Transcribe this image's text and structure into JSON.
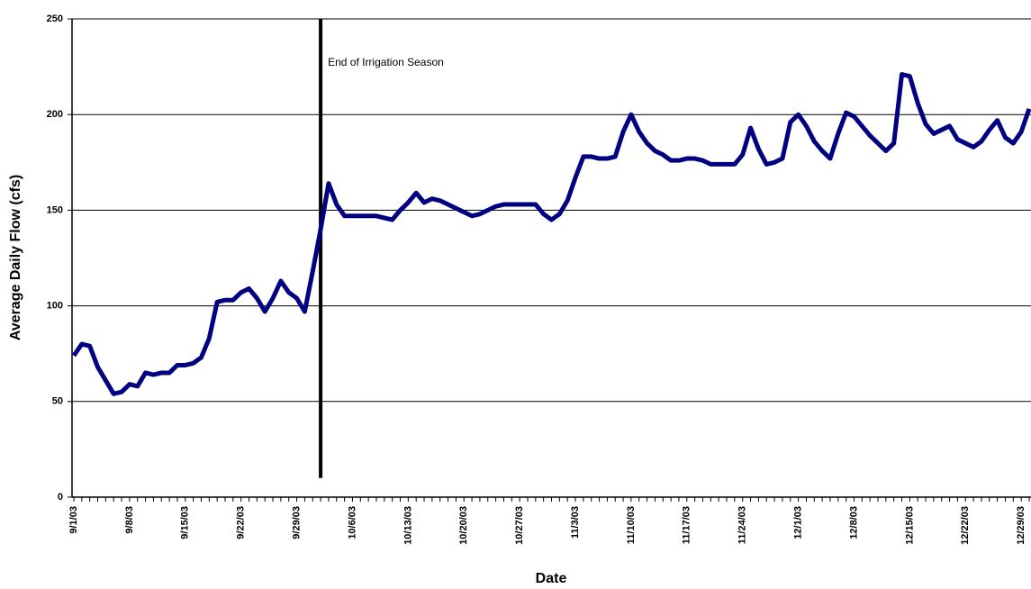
{
  "chart_data": {
    "type": "line",
    "ylabel": "Average Daily Flow (cfs)",
    "xlabel": "Date",
    "categories": [
      "9/1/03",
      null,
      null,
      null,
      null,
      null,
      null,
      "9/8/03",
      null,
      null,
      null,
      null,
      null,
      null,
      "9/15/03",
      null,
      null,
      null,
      null,
      null,
      null,
      "9/22/03",
      null,
      null,
      null,
      null,
      null,
      null,
      "9/29/03",
      null,
      null,
      null,
      null,
      null,
      null,
      "10/6/03",
      null,
      null,
      null,
      null,
      null,
      null,
      "10/13/03",
      null,
      null,
      null,
      null,
      null,
      null,
      "10/20/03",
      null,
      null,
      null,
      null,
      null,
      null,
      "10/27/03",
      null,
      null,
      null,
      null,
      null,
      null,
      "11/3/03",
      null,
      null,
      null,
      null,
      null,
      null,
      "11/10/03",
      null,
      null,
      null,
      null,
      null,
      null,
      "11/17/03",
      null,
      null,
      null,
      null,
      null,
      null,
      "11/24/03",
      null,
      null,
      null,
      null,
      null,
      null,
      "12/1/03",
      null,
      null,
      null,
      null,
      null,
      null,
      "12/8/03",
      null,
      null,
      null,
      null,
      null,
      null,
      "12/15/03",
      null,
      null,
      null,
      null,
      null,
      null,
      "12/22/03",
      null,
      null,
      null,
      null,
      null,
      null,
      "12/29/03",
      null
    ],
    "values": [
      74,
      80,
      79,
      68,
      61,
      54,
      55,
      59,
      58,
      65,
      64,
      65,
      65,
      69,
      69,
      70,
      73,
      83,
      102,
      103,
      103,
      107,
      109,
      104,
      97,
      104,
      113,
      107,
      104,
      97,
      118,
      140,
      164,
      153,
      147,
      147,
      147,
      147,
      147,
      146,
      145,
      150,
      154,
      159,
      154,
      156,
      155,
      153,
      151,
      149,
      147,
      148,
      150,
      152,
      153,
      153,
      153,
      153,
      153,
      148,
      145,
      148,
      155,
      167,
      178,
      178,
      177,
      177,
      178,
      191,
      200,
      191,
      185,
      181,
      179,
      176,
      176,
      177,
      177,
      176,
      174,
      174,
      174,
      174,
      179,
      193,
      182,
      174,
      175,
      177,
      196,
      200,
      194,
      186,
      181,
      177,
      190,
      201,
      199,
      194,
      189,
      185,
      181,
      185,
      221,
      220,
      206,
      195,
      190,
      192,
      194,
      187,
      185,
      183,
      186,
      192,
      197,
      188,
      185,
      191,
      203
    ],
    "color": "#000080",
    "ylim": [
      0,
      250
    ],
    "yticks": [
      0,
      50,
      100,
      150,
      200,
      250
    ],
    "grid": true,
    "annotation": {
      "text": "End of Irrigation Season",
      "x": "10/2/03",
      "y": [
        10,
        250
      ]
    }
  }
}
